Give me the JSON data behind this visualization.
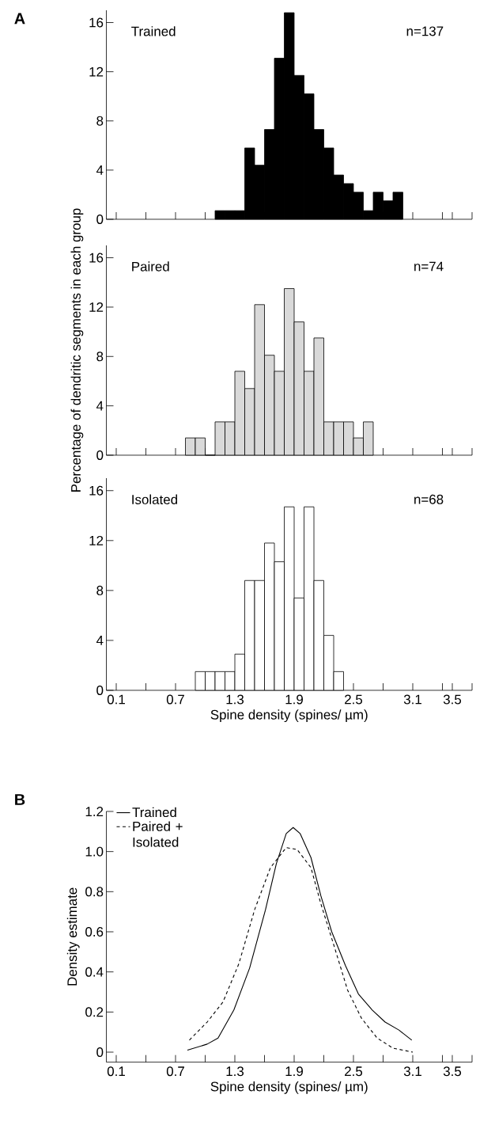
{
  "chart_data": [
    {
      "type": "histogram",
      "title": "A",
      "annotations": [
        "Trained",
        "n=137"
      ],
      "color": "#000000",
      "bins": [
        1.1,
        1.2,
        1.3,
        1.4,
        1.5,
        1.6,
        1.7,
        1.8,
        1.9,
        2.0,
        2.1,
        2.2,
        2.3,
        2.4,
        2.5,
        2.6,
        2.7,
        2.8,
        2.9,
        3.0
      ],
      "values": [
        0.7,
        0.7,
        0.7,
        5.8,
        4.4,
        7.3,
        13.1,
        16.8,
        11.7,
        10.2,
        7.3,
        5.8,
        3.6,
        2.9,
        2.2,
        0.7,
        2.2,
        1.5,
        2.2
      ],
      "xlim": [
        0,
        3.7
      ],
      "ylim": [
        0,
        17
      ],
      "yticks": [
        0,
        4,
        8,
        12,
        16
      ],
      "xticks": [
        0.1,
        {
          "value": 0.4,
          "label": null
        },
        0.7,
        {
          "value": 1.0,
          "label": null
        },
        1.3,
        {
          "value": 1.6,
          "label": null
        },
        1.9,
        {
          "value": 2.2,
          "label": null
        },
        2.5,
        {
          "value": 2.8,
          "label": null
        },
        3.1,
        {
          "value": 3.4,
          "label": null
        },
        3.5,
        {
          "value": 3.7,
          "label": null
        }
      ],
      "tick_labels": "y"
    },
    {
      "type": "histogram",
      "ylabel": "Percentage of dendritic segments in each group",
      "annotations": [
        "Paired",
        "n=74"
      ],
      "color": "#d9d9d9",
      "bins": [
        0.8,
        0.9,
        1.0,
        1.1,
        1.2,
        1.3,
        1.4,
        1.5,
        1.6,
        1.7,
        1.8,
        1.9,
        2.0,
        2.1,
        2.2,
        2.3,
        2.4,
        2.5,
        2.6,
        2.7
      ],
      "values": [
        1.4,
        1.4,
        0,
        2.7,
        2.7,
        6.8,
        5.4,
        12.2,
        8.1,
        6.8,
        13.5,
        10.8,
        6.8,
        9.5,
        2.7,
        2.7,
        2.7,
        1.4,
        2.7
      ],
      "xlim": [
        0,
        3.7
      ],
      "ylim": [
        0,
        17
      ],
      "yticks": [
        0,
        4,
        8,
        12,
        16
      ],
      "xticks": [
        0.1,
        {
          "value": 0.4,
          "label": null
        },
        0.7,
        {
          "value": 1.0,
          "label": null
        },
        1.3,
        {
          "value": 1.6,
          "label": null
        },
        1.9,
        {
          "value": 2.2,
          "label": null
        },
        2.5,
        {
          "value": 2.8,
          "label": null
        },
        3.1,
        {
          "value": 3.4,
          "label": null
        },
        3.5,
        {
          "value": 3.7,
          "label": null
        }
      ],
      "tick_labels": "y"
    },
    {
      "type": "histogram",
      "xlabel": "Spine density (spines/ µm)",
      "annotations": [
        "Isolated",
        "n=68"
      ],
      "color": "#ffffff",
      "bins": [
        0.9,
        1.0,
        1.1,
        1.2,
        1.3,
        1.4,
        1.5,
        1.6,
        1.7,
        1.8,
        1.9,
        2.0,
        2.1,
        2.2,
        2.3,
        2.4
      ],
      "values": [
        1.5,
        1.5,
        1.5,
        1.5,
        2.9,
        8.8,
        8.8,
        11.8,
        10.3,
        14.7,
        7.4,
        14.7,
        8.8,
        4.4,
        1.5
      ],
      "xlim": [
        0,
        3.7
      ],
      "ylim": [
        0,
        17
      ],
      "yticks": [
        0,
        4,
        8,
        12,
        16
      ],
      "xticks": [
        0.1,
        {
          "value": 0.4,
          "label": null
        },
        0.7,
        {
          "value": 1.0,
          "label": null
        },
        1.3,
        {
          "value": 1.6,
          "label": null
        },
        1.9,
        {
          "value": 2.2,
          "label": null
        },
        2.5,
        {
          "value": 2.8,
          "label": null
        },
        3.1,
        {
          "value": 3.4,
          "label": null
        },
        3.5,
        {
          "value": 3.7,
          "label": null
        }
      ]
    },
    {
      "type": "line",
      "title": "B",
      "xlabel": "Spine density (spines/ µm)",
      "ylabel": "Density estimate",
      "legend": "top left",
      "series": [
        {
          "name": "Trained",
          "color": "#000000",
          "line_style": "solid",
          "x": [
            0.82,
            1.02,
            1.13,
            1.29,
            1.45,
            1.61,
            1.72,
            1.82,
            1.89,
            1.96,
            2.07,
            2.17,
            2.28,
            2.42,
            2.55,
            2.69,
            2.82,
            2.96,
            3.09
          ],
          "values": [
            0.01,
            0.04,
            0.07,
            0.21,
            0.42,
            0.71,
            0.94,
            1.09,
            1.12,
            1.09,
            0.97,
            0.78,
            0.6,
            0.43,
            0.29,
            0.21,
            0.15,
            0.11,
            0.06
          ]
        },
        {
          "name": "Paired + Isolated",
          "color": "#000000",
          "line_style": "dashed",
          "x": [
            0.84,
            1.02,
            1.18,
            1.34,
            1.5,
            1.66,
            1.82,
            1.93,
            2.07,
            2.17,
            2.31,
            2.44,
            2.58,
            2.74,
            2.9,
            3.1
          ],
          "values": [
            0.06,
            0.15,
            0.25,
            0.44,
            0.71,
            0.92,
            1.02,
            1.01,
            0.92,
            0.74,
            0.52,
            0.31,
            0.17,
            0.07,
            0.02,
            0.0
          ]
        }
      ],
      "xlim": [
        0,
        3.7
      ],
      "ylim": [
        -0.05,
        1.2
      ],
      "yticks": [
        0,
        0.2,
        0.4,
        0.6,
        0.8,
        {
          "value": 1,
          "label": "1.0"
        },
        1.2
      ],
      "xticks": [
        0.1,
        {
          "value": 0.4,
          "label": null
        },
        0.7,
        {
          "value": 1.0,
          "label": null
        },
        1.3,
        {
          "value": 1.6,
          "label": null
        },
        1.9,
        {
          "value": 2.2,
          "label": null
        },
        2.5,
        {
          "value": 2.8,
          "label": null
        },
        3.1,
        {
          "value": 3.4,
          "label": null
        },
        3.5,
        {
          "value": 3.7,
          "label": null
        }
      ]
    }
  ]
}
